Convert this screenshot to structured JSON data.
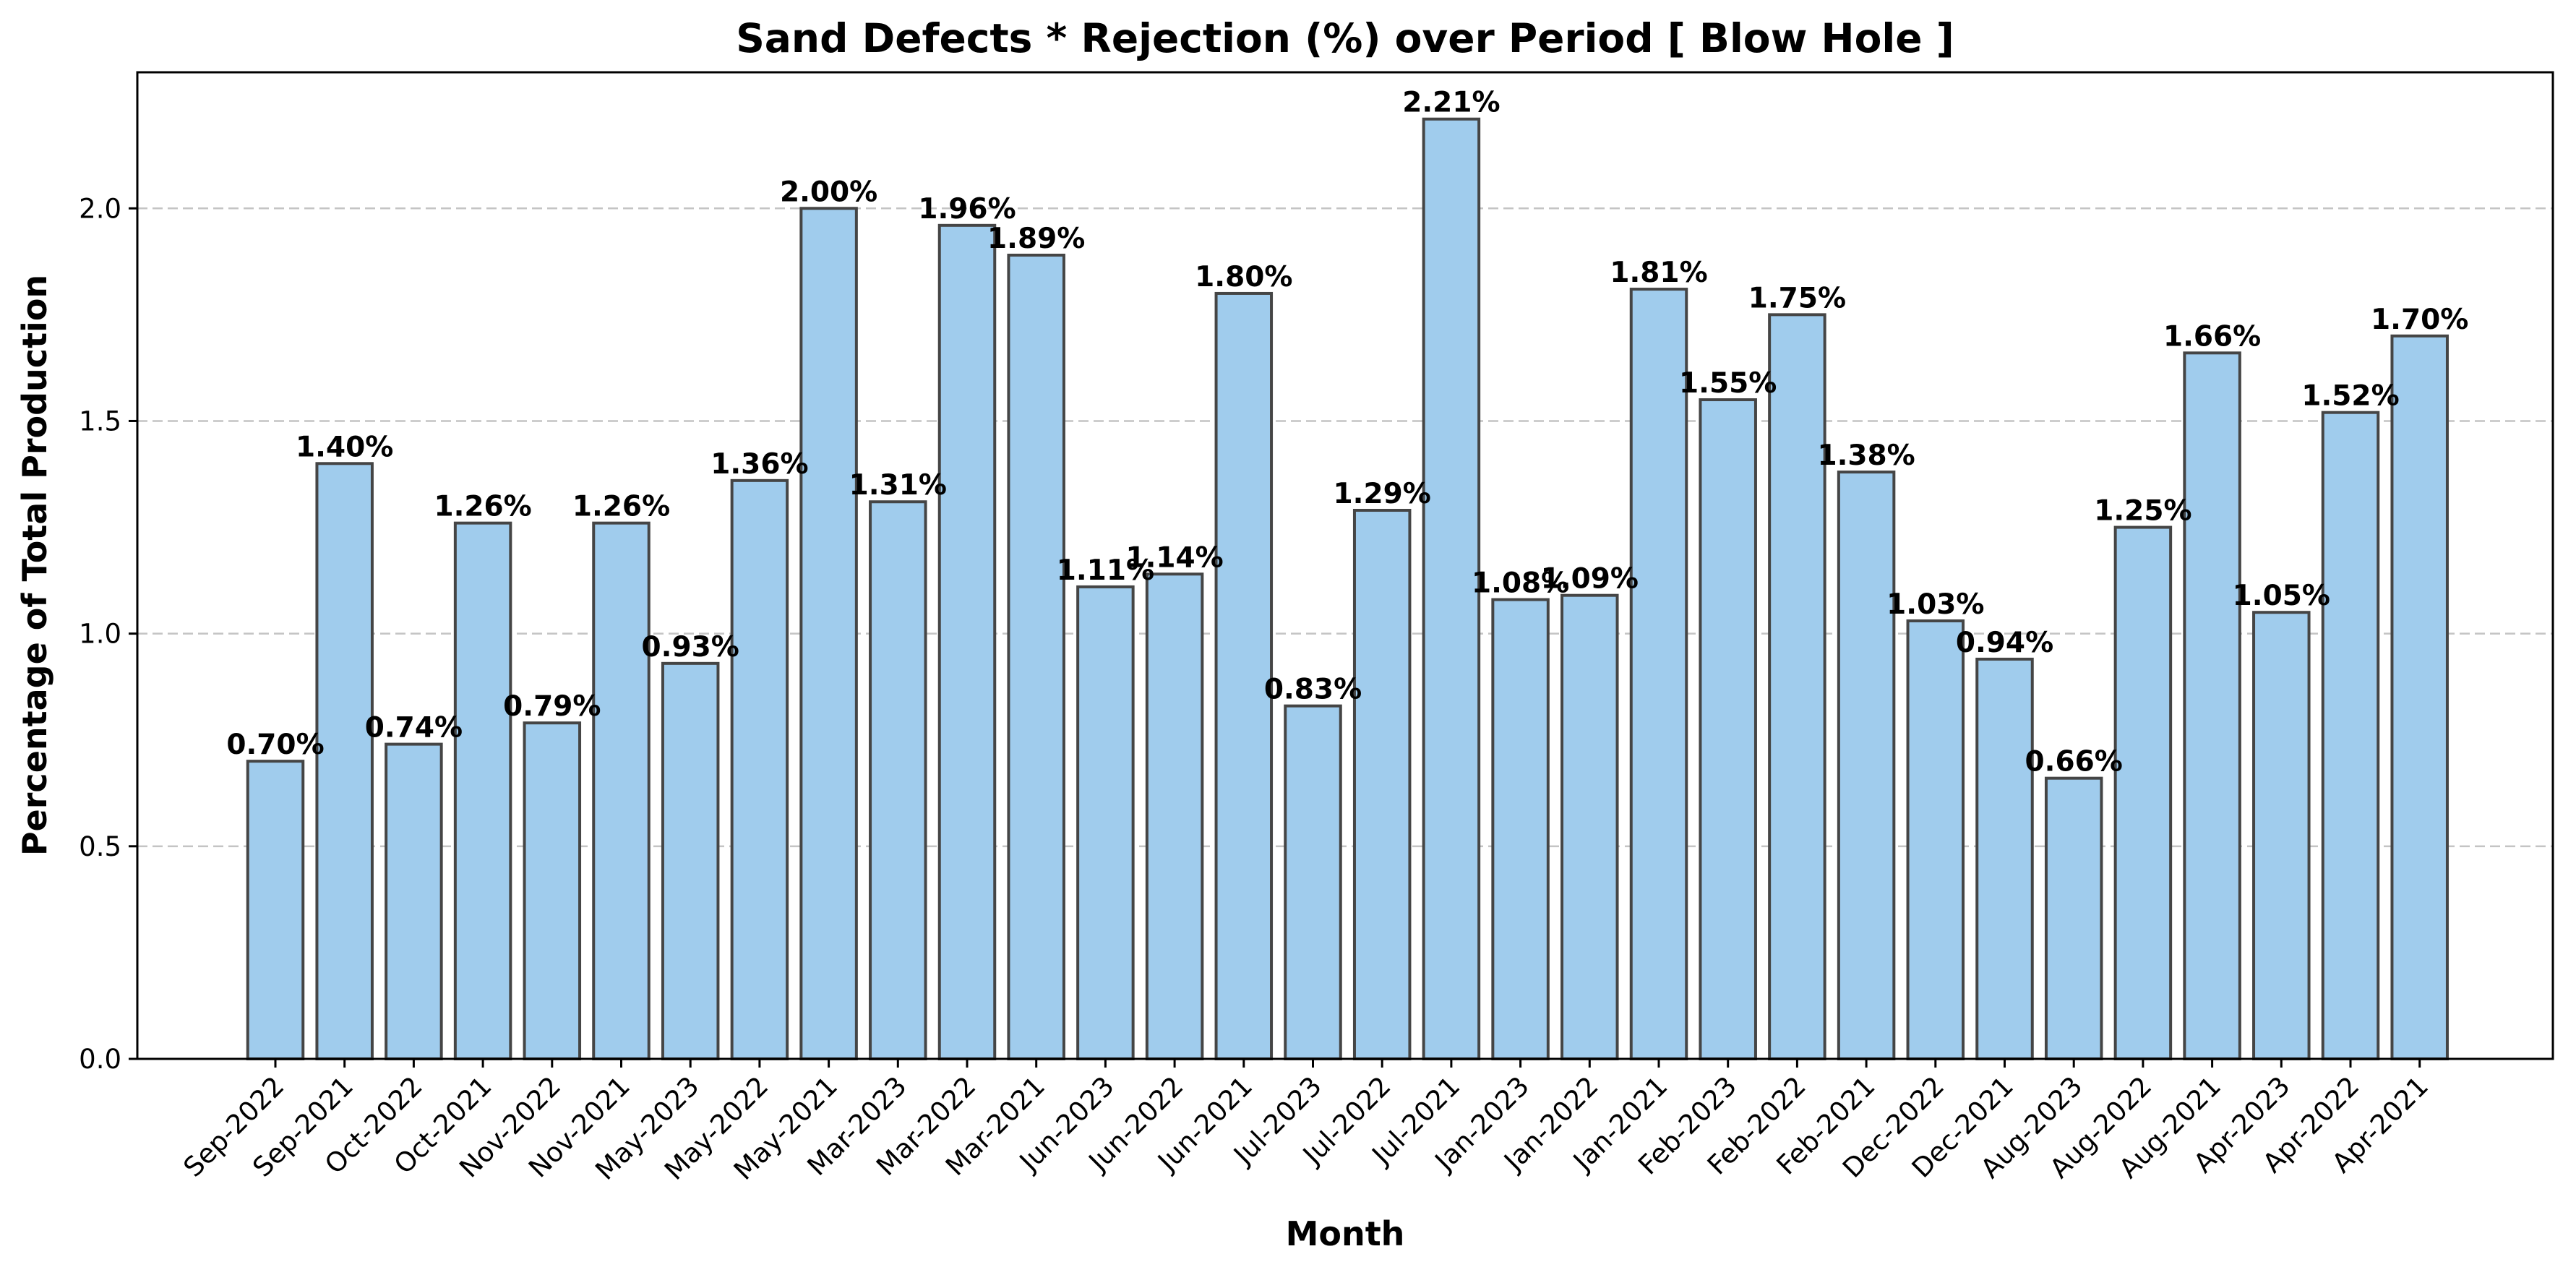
{
  "chart_data": {
    "type": "bar",
    "title": "Sand Defects * Rejection (%) over Period [ Blow Hole ]",
    "xlabel": "Month",
    "ylabel": "Percentage of Total Production",
    "ylim": [
      0,
      2.32
    ],
    "yticks": [
      "0.0",
      "0.5",
      "1.0",
      "1.5",
      "2.0"
    ],
    "grid": "horizontal dashed",
    "bar_color": "#a0cced",
    "edge_color": "#454545",
    "categories": [
      "Sep-2022",
      "Sep-2021",
      "Oct-2022",
      "Oct-2021",
      "Nov-2022",
      "Nov-2021",
      "May-2023",
      "May-2022",
      "May-2021",
      "Mar-2023",
      "Mar-2022",
      "Mar-2021",
      "Jun-2023",
      "Jun-2022",
      "Jun-2021",
      "Jul-2023",
      "Jul-2022",
      "Jul-2021",
      "Jan-2023",
      "Jan-2022",
      "Jan-2021",
      "Feb-2023",
      "Feb-2022",
      "Feb-2021",
      "Dec-2022",
      "Dec-2021",
      "Aug-2023",
      "Aug-2022",
      "Aug-2021",
      "Apr-2023",
      "Apr-2022",
      "Apr-2021"
    ],
    "values": [
      0.7,
      1.4,
      0.74,
      1.26,
      0.79,
      1.26,
      0.93,
      1.36,
      2.0,
      1.31,
      1.96,
      1.89,
      1.11,
      1.14,
      1.8,
      0.83,
      1.29,
      2.21,
      1.08,
      1.09,
      1.81,
      1.55,
      1.75,
      1.38,
      1.03,
      0.94,
      0.66,
      1.25,
      1.66,
      1.05,
      1.52,
      1.7
    ],
    "labels": [
      "0.70%",
      "1.40%",
      "0.74%",
      "1.26%",
      "0.79%",
      "1.26%",
      "0.93%",
      "1.36%",
      "2.00%",
      "1.31%",
      "1.96%",
      "1.89%",
      "1.11%",
      "1.14%",
      "1.80%",
      "0.83%",
      "1.29%",
      "2.21%",
      "1.08%",
      "1.09%",
      "1.81%",
      "1.55%",
      "1.75%",
      "1.38%",
      "1.03%",
      "0.94%",
      "0.66%",
      "1.25%",
      "1.66%",
      "1.05%",
      "1.52%",
      "1.70%"
    ]
  }
}
